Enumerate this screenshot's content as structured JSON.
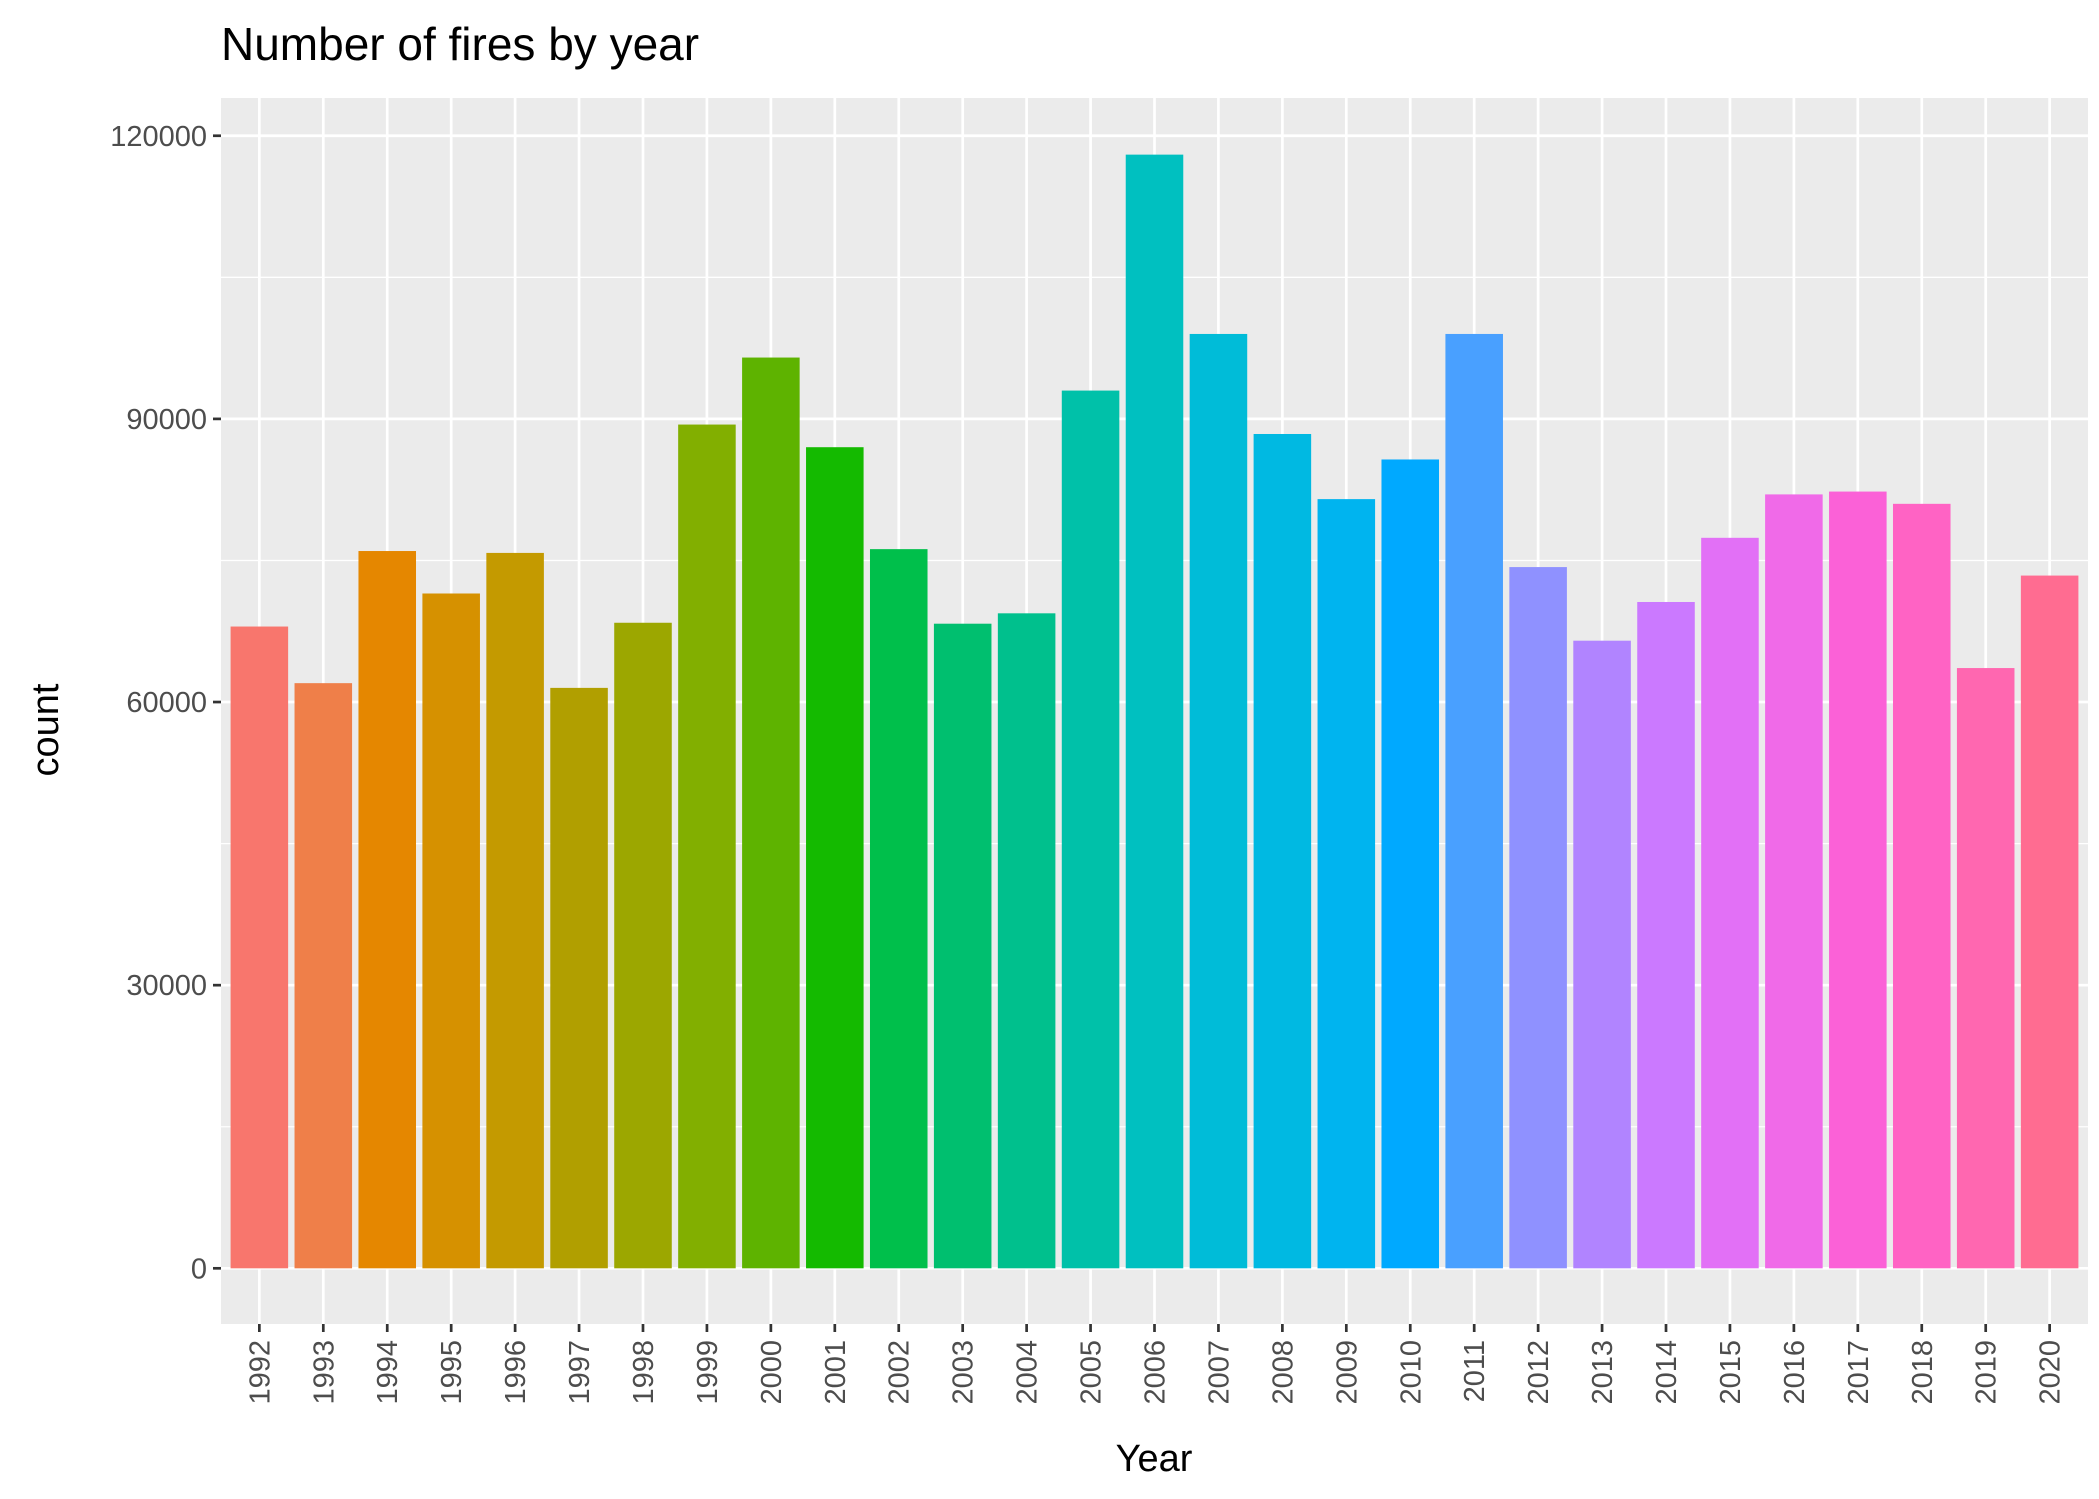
{
  "chart_data": {
    "type": "bar",
    "title": "Number of fires by year",
    "xlabel": "Year",
    "ylabel": "count",
    "ylim": [
      -5900,
      124000
    ],
    "yticks": [
      0,
      30000,
      60000,
      90000,
      120000
    ],
    "grid": true,
    "legend": "none",
    "panel_color": "#ebebeb",
    "grid_color": "#ffffff",
    "categories": [
      "1992",
      "1993",
      "1994",
      "1995",
      "1996",
      "1997",
      "1998",
      "1999",
      "2000",
      "2001",
      "2002",
      "2003",
      "2004",
      "2005",
      "2006",
      "2007",
      "2008",
      "2009",
      "2010",
      "2011",
      "2012",
      "2013",
      "2014",
      "2015",
      "2016",
      "2017",
      "2018",
      "2019",
      "2020"
    ],
    "values": [
      68000,
      62000,
      76000,
      71500,
      75800,
      61500,
      68400,
      89400,
      96500,
      87000,
      76200,
      68300,
      69400,
      93000,
      118000,
      99000,
      88400,
      81500,
      85700,
      99000,
      74300,
      66500,
      70600,
      77400,
      82000,
      82300,
      81000,
      63600,
      73400
    ],
    "colors": [
      "#F8766D",
      "#EF7F49",
      "#E58700",
      "#D69100",
      "#C49A00",
      "#B19F00",
      "#9CA700",
      "#82AF00",
      "#5EB300",
      "#14BA00",
      "#00BF4B",
      "#00BF6F",
      "#00C08D",
      "#00C1A9",
      "#00C0C0",
      "#00BCD8",
      "#00B9E2",
      "#00B4EF",
      "#00A9FF",
      "#49A0FF",
      "#8F91FF",
      "#B184FF",
      "#CB79FF",
      "#E270F6",
      "#F06AE8",
      "#FB61D7",
      "#FF63C4",
      "#FF67B0",
      "#FF6C91"
    ]
  }
}
